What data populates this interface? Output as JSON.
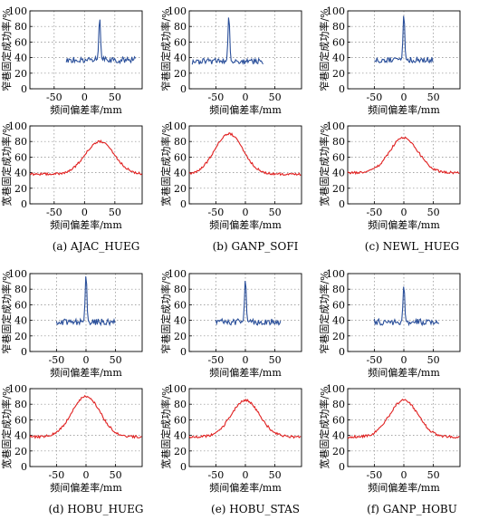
{
  "figure": {
    "captions": [
      "(a) AJAC_HUEG",
      "(b) GANP_SOFI",
      "(c) NEWL_HUEG",
      "(d) HOBU_HUEG",
      "(e) HOBU_STAS",
      "(f) GANP_HOBU"
    ]
  },
  "colors": {
    "narrow": "#2a4f9a",
    "wide": "#e02020"
  },
  "chart_data": [
    {
      "type": "line",
      "panel": "a",
      "band": "narrow",
      "xlabel": "频间偏差率/mm",
      "ylabel": "窄巷固定成功率/%",
      "xlim": [
        -90,
        95
      ],
      "ylim": [
        0,
        100
      ],
      "xticks": [
        -50,
        0,
        50
      ],
      "yticks": [
        0,
        20,
        40,
        60,
        80,
        100
      ],
      "grid": true,
      "peak_x": 25,
      "peak_y": 92,
      "base": 37,
      "x_range": [
        -30,
        85
      ]
    },
    {
      "type": "line",
      "panel": "b",
      "band": "narrow",
      "xlabel": "频间偏差率/mm",
      "ylabel": "窄巷固定成功率/%",
      "xlim": [
        -95,
        95
      ],
      "ylim": [
        0,
        100
      ],
      "xticks": [
        -50,
        0,
        50
      ],
      "yticks": [
        0,
        20,
        40,
        60,
        80,
        100
      ],
      "grid": true,
      "peak_x": -28,
      "peak_y": 95,
      "base": 35,
      "x_range": [
        -90,
        30
      ]
    },
    {
      "type": "line",
      "panel": "c",
      "band": "narrow",
      "xlabel": "频间偏差率/mm",
      "ylabel": "窄巷固定成功率/%",
      "xlim": [
        -95,
        95
      ],
      "ylim": [
        0,
        100
      ],
      "xticks": [
        -50,
        0,
        50
      ],
      "yticks": [
        0,
        20,
        40,
        60,
        80,
        100
      ],
      "grid": true,
      "peak_x": 0,
      "peak_y": 97,
      "base": 37,
      "x_range": [
        -50,
        50
      ]
    },
    {
      "type": "line",
      "panel": "a",
      "band": "wide",
      "xlabel": "频间偏差率/mm",
      "ylabel": "宽巷固定成功率/%",
      "xlim": [
        -90,
        95
      ],
      "ylim": [
        0,
        100
      ],
      "xticks": [
        -50,
        0,
        50
      ],
      "yticks": [
        0,
        20,
        40,
        60,
        80,
        100
      ],
      "grid": true,
      "peak_x": 25,
      "peak_y": 80,
      "base": 38,
      "x_range": [
        -90,
        95
      ]
    },
    {
      "type": "line",
      "panel": "b",
      "band": "wide",
      "xlabel": "频间偏差率/mm",
      "ylabel": "宽巷固定成功率/%",
      "xlim": [
        -95,
        95
      ],
      "ylim": [
        0,
        100
      ],
      "xticks": [
        -50,
        0,
        50
      ],
      "yticks": [
        0,
        20,
        40,
        60,
        80,
        100
      ],
      "grid": true,
      "peak_x": -28,
      "peak_y": 90,
      "base": 38,
      "x_range": [
        -95,
        95
      ]
    },
    {
      "type": "line",
      "panel": "c",
      "band": "wide",
      "xlabel": "频间偏差率/mm",
      "ylabel": "宽巷固定成功率/%",
      "xlim": [
        -95,
        95
      ],
      "ylim": [
        0,
        100
      ],
      "xticks": [
        -50,
        0,
        50
      ],
      "yticks": [
        0,
        20,
        40,
        60,
        80,
        100
      ],
      "grid": true,
      "peak_x": 0,
      "peak_y": 85,
      "base": 40,
      "x_range": [
        -95,
        95
      ]
    },
    {
      "type": "line",
      "panel": "d",
      "band": "narrow",
      "xlabel": "频间偏差率/mm",
      "ylabel": "窄巷固定成功率/%",
      "xlim": [
        -95,
        95
      ],
      "ylim": [
        0,
        100
      ],
      "xticks": [
        -50,
        0,
        50
      ],
      "yticks": [
        0,
        20,
        40,
        60,
        80,
        100
      ],
      "grid": true,
      "peak_x": 0,
      "peak_y": 100,
      "base": 38,
      "x_range": [
        -50,
        50
      ]
    },
    {
      "type": "line",
      "panel": "e",
      "band": "narrow",
      "xlabel": "频间偏差率/mm",
      "ylabel": "窄巷固定成功率/%",
      "xlim": [
        -95,
        95
      ],
      "ylim": [
        0,
        100
      ],
      "xticks": [
        -50,
        0,
        50
      ],
      "yticks": [
        0,
        20,
        40,
        60,
        80,
        100
      ],
      "grid": true,
      "peak_x": 0,
      "peak_y": 94,
      "base": 38,
      "x_range": [
        -50,
        60
      ]
    },
    {
      "type": "line",
      "panel": "f",
      "band": "narrow",
      "xlabel": "频间偏差率/mm",
      "ylabel": "窄巷固定成功率/%",
      "xlim": [
        -95,
        95
      ],
      "ylim": [
        0,
        100
      ],
      "xticks": [
        -50,
        0,
        50
      ],
      "yticks": [
        0,
        20,
        40,
        60,
        80,
        100
      ],
      "grid": true,
      "peak_x": 0,
      "peak_y": 86,
      "base": 38,
      "x_range": [
        -50,
        60
      ]
    },
    {
      "type": "line",
      "panel": "d",
      "band": "wide",
      "xlabel": "频间偏差率/mm",
      "ylabel": "宽巷固定成功率/%",
      "xlim": [
        -95,
        95
      ],
      "ylim": [
        0,
        100
      ],
      "xticks": [
        -50,
        0,
        50
      ],
      "yticks": [
        0,
        20,
        40,
        60,
        80,
        100
      ],
      "grid": true,
      "peak_x": 0,
      "peak_y": 90,
      "base": 38,
      "x_range": [
        -95,
        95
      ]
    },
    {
      "type": "line",
      "panel": "e",
      "band": "wide",
      "xlabel": "频间偏差率/mm",
      "ylabel": "宽巷固定成功率/%",
      "xlim": [
        -95,
        95
      ],
      "ylim": [
        0,
        100
      ],
      "xticks": [
        -50,
        0,
        50
      ],
      "yticks": [
        0,
        20,
        40,
        60,
        80,
        100
      ],
      "grid": true,
      "peak_x": 0,
      "peak_y": 85,
      "base": 38,
      "x_range": [
        -95,
        95
      ]
    },
    {
      "type": "line",
      "panel": "f",
      "band": "wide",
      "xlabel": "频间偏差率/mm",
      "ylabel": "宽巷固定成功率/%",
      "xlim": [
        -95,
        95
      ],
      "ylim": [
        0,
        100
      ],
      "xticks": [
        -50,
        0,
        50
      ],
      "yticks": [
        0,
        20,
        40,
        60,
        80,
        100
      ],
      "grid": true,
      "peak_x": 0,
      "peak_y": 85,
      "base": 38,
      "x_range": [
        -95,
        95
      ]
    }
  ]
}
